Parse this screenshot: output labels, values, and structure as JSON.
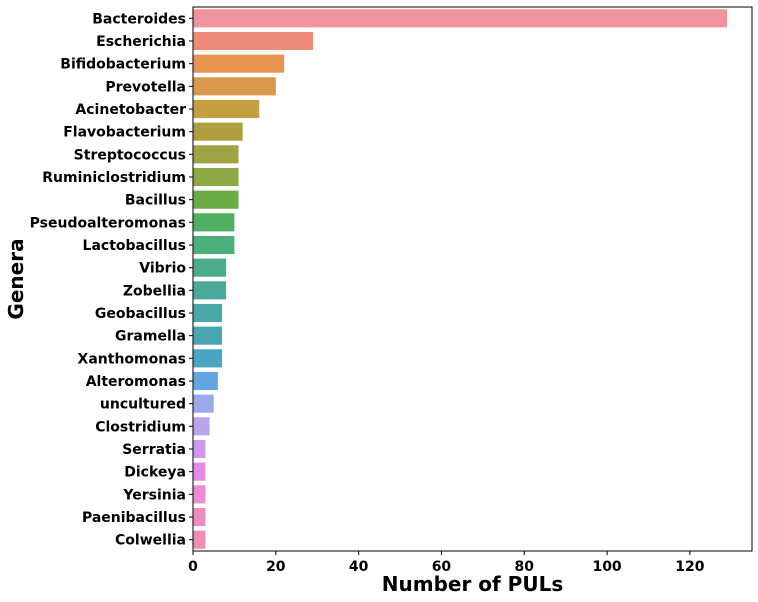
{
  "chart_data": {
    "type": "bar",
    "orientation": "horizontal",
    "title": "",
    "xlabel": "Number of PULs",
    "ylabel": "Genera",
    "xlim": [
      0,
      135
    ],
    "xticks": [
      0,
      20,
      40,
      60,
      80,
      100,
      120
    ],
    "grid": false,
    "legend": "none",
    "categories": [
      "Bacteroides",
      "Escherichia",
      "Bifidobacterium",
      "Prevotella",
      "Acinetobacter",
      "Flavobacterium",
      "Streptococcus",
      "Ruminiclostridium",
      "Bacillus",
      "Pseudoalteromonas",
      "Lactobacillus",
      "Vibrio",
      "Zobellia",
      "Geobacillus",
      "Gramella",
      "Xanthomonas",
      "Alteromonas",
      "uncultured",
      "Clostridium",
      "Serratia",
      "Dickeya",
      "Yersinia",
      "Paenibacillus",
      "Colwellia"
    ],
    "values": [
      129,
      29,
      22,
      20,
      16,
      12,
      11,
      11,
      11,
      10,
      10,
      8,
      8,
      7,
      7,
      7,
      6,
      5,
      4,
      3,
      3,
      3,
      3,
      3
    ],
    "colors": [
      "#ef949d",
      "#ee8b78",
      "#e8944f",
      "#d9984b",
      "#c59f3f",
      "#b09f3f",
      "#a0a244",
      "#8ea845",
      "#6aac45",
      "#4faf62",
      "#4caf79",
      "#4bac8c",
      "#4aa99a",
      "#4aa7a6",
      "#4aa5b0",
      "#4ba5be",
      "#63a6e3",
      "#9ba8ec",
      "#b8a5ec",
      "#d199ec",
      "#e48ce8",
      "#ee8ad6",
      "#ee8bc1",
      "#ee8db0"
    ]
  }
}
